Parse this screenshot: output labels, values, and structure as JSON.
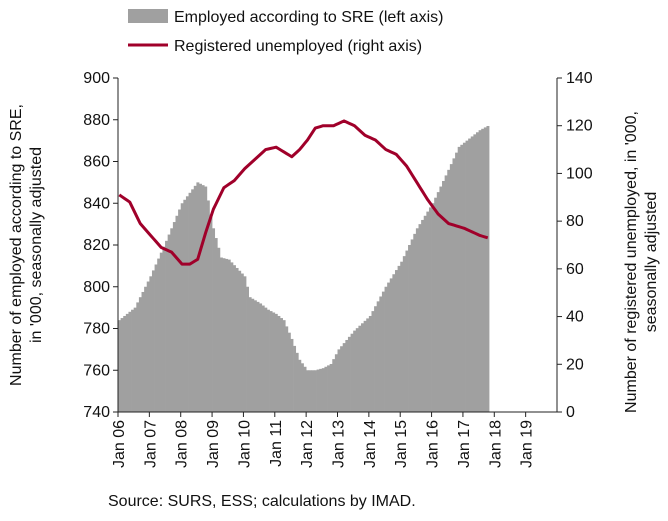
{
  "chart_data": {
    "type": "bar+line",
    "title": "",
    "source": "Source: SURS, ESS; calculations by IMAD.",
    "legend": {
      "placement": "top",
      "entries": [
        {
          "label": "Employed according to SRE (left axis)",
          "kind": "bar",
          "color": "#a0a0a0"
        },
        {
          "label": "Registered unemployed (right axis)",
          "kind": "line",
          "color": "#a0002a"
        }
      ]
    },
    "y_left": {
      "label_line1": "Number of employed according to SRE,",
      "label_line2": "in '000, seasonally adjusted",
      "range": [
        740,
        900
      ],
      "ticks": [
        "740",
        "760",
        "780",
        "800",
        "820",
        "840",
        "860",
        "880",
        "900"
      ]
    },
    "y_right": {
      "label_line1": "Number of registered unemployed, in '000,",
      "label_line2": "seasonally adjusted",
      "range": [
        0,
        140
      ],
      "ticks": [
        "0",
        "20",
        "40",
        "60",
        "80",
        "100",
        "120",
        "140"
      ]
    },
    "x_axis": {
      "start": "Jan 06",
      "months": 168,
      "tick_labels": [
        "Jan 06",
        "Jan 07",
        "Jan 08",
        "Jan 09",
        "Jan 10",
        "Jan 11",
        "Jan 12",
        "Jan 13",
        "Jan 14",
        "Jan 15",
        "Jan 16",
        "Jan 17",
        "Jan 18",
        "Jan 19"
      ]
    },
    "series": [
      {
        "name": "Employed according to SRE (left axis)",
        "axis": "left",
        "frequency": "monthly",
        "keypoints": [
          [
            0,
            784
          ],
          [
            6,
            790
          ],
          [
            12,
            805
          ],
          [
            18,
            822
          ],
          [
            24,
            840
          ],
          [
            30,
            850
          ],
          [
            33,
            848
          ],
          [
            36,
            828
          ],
          [
            39,
            814
          ],
          [
            42,
            813
          ],
          [
            45,
            809
          ],
          [
            48,
            805
          ],
          [
            50,
            795
          ],
          [
            54,
            792
          ],
          [
            57,
            789
          ],
          [
            60,
            787
          ],
          [
            63,
            784
          ],
          [
            66,
            775
          ],
          [
            69,
            765
          ],
          [
            72,
            760
          ],
          [
            75,
            760
          ],
          [
            78,
            761
          ],
          [
            81,
            763
          ],
          [
            84,
            770
          ],
          [
            90,
            779
          ],
          [
            96,
            786
          ],
          [
            102,
            800
          ],
          [
            108,
            812
          ],
          [
            114,
            828
          ],
          [
            120,
            840
          ],
          [
            126,
            856
          ],
          [
            130,
            867
          ],
          [
            134,
            871
          ],
          [
            138,
            875
          ],
          [
            141,
            877
          ]
        ]
      },
      {
        "name": "Registered unemployed (right axis)",
        "axis": "right",
        "frequency": "monthly",
        "keypoints": [
          [
            0,
            91
          ],
          [
            4,
            88
          ],
          [
            8,
            79
          ],
          [
            12,
            74
          ],
          [
            16,
            69
          ],
          [
            20,
            67
          ],
          [
            24,
            62
          ],
          [
            27,
            62
          ],
          [
            30,
            64
          ],
          [
            33,
            75
          ],
          [
            36,
            85
          ],
          [
            40,
            94
          ],
          [
            44,
            97
          ],
          [
            48,
            102
          ],
          [
            52,
            106
          ],
          [
            56,
            110
          ],
          [
            60,
            111
          ],
          [
            63,
            109
          ],
          [
            66,
            107
          ],
          [
            69,
            110
          ],
          [
            72,
            114
          ],
          [
            75,
            119
          ],
          [
            78,
            120
          ],
          [
            82,
            120
          ],
          [
            86,
            122
          ],
          [
            90,
            120
          ],
          [
            94,
            116
          ],
          [
            98,
            114
          ],
          [
            102,
            110
          ],
          [
            106,
            108
          ],
          [
            110,
            103
          ],
          [
            114,
            96
          ],
          [
            118,
            89
          ],
          [
            122,
            83
          ],
          [
            126,
            79
          ],
          [
            132,
            77
          ],
          [
            138,
            74
          ],
          [
            141,
            73
          ]
        ]
      }
    ]
  }
}
